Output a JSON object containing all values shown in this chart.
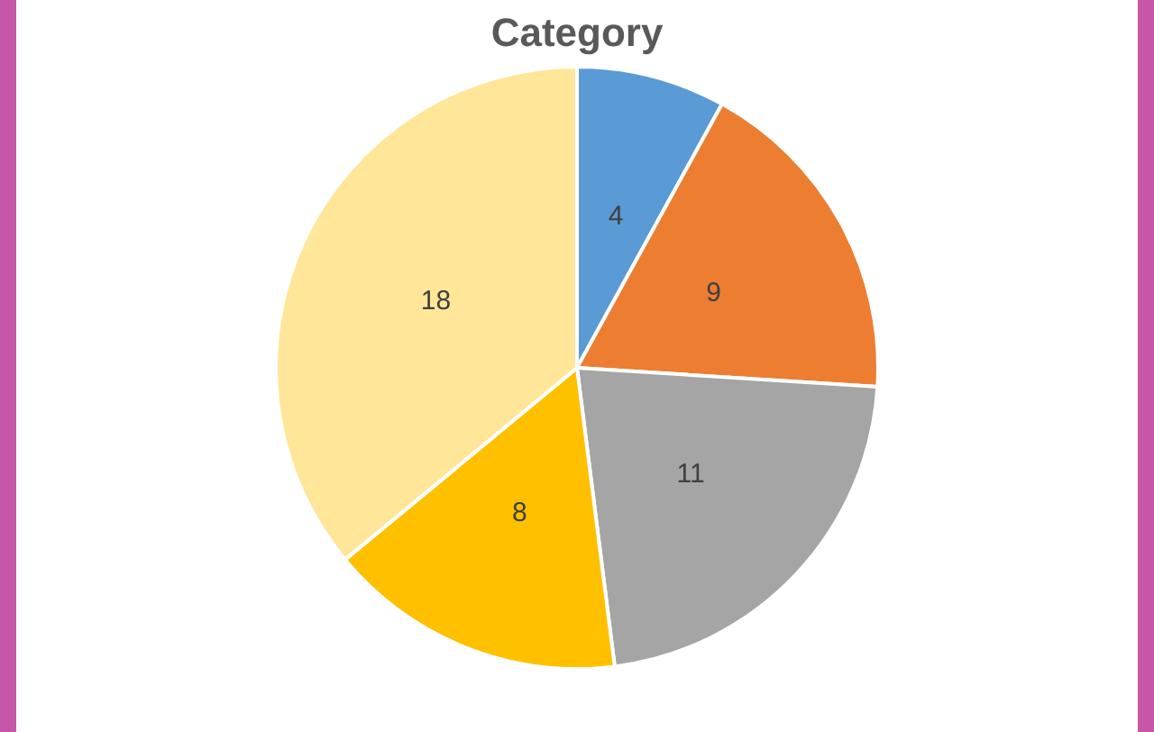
{
  "chart_data": {
    "type": "pie",
    "title": "Category",
    "categories": [
      null,
      null,
      null,
      null,
      null
    ],
    "values": [
      4,
      9,
      11,
      8,
      18
    ],
    "colors": [
      "#5b9bd5",
      "#ed7d31",
      "#a5a5a5",
      "#ffc000",
      "#ffe699"
    ],
    "data_labels": true,
    "legend": false
  }
}
